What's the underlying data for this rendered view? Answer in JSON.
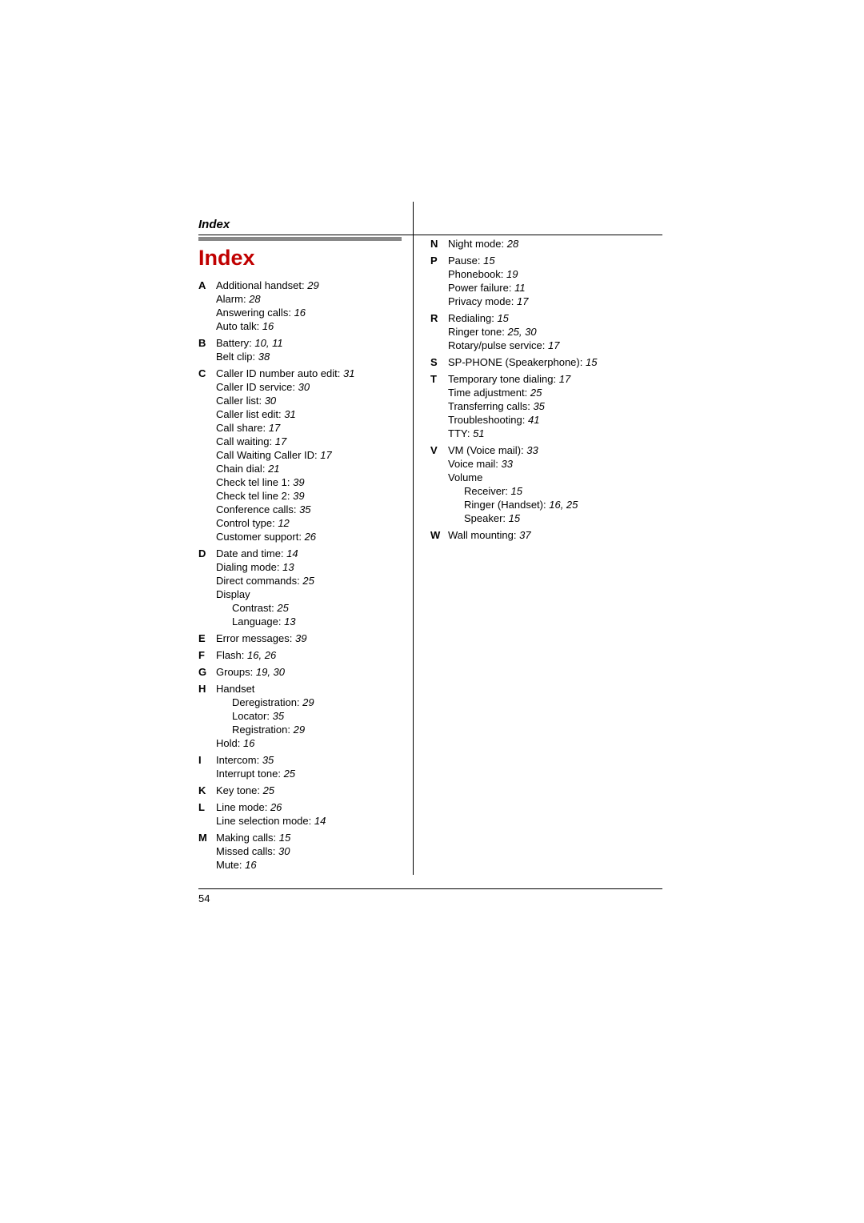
{
  "header": {
    "section_title": "Index",
    "main_title": "Index"
  },
  "left_column": [
    {
      "letter": "A",
      "entries": [
        {
          "text": "Additional handset:",
          "pages": "29"
        },
        {
          "text": "Alarm:",
          "pages": "28"
        },
        {
          "text": "Answering calls:",
          "pages": "16"
        },
        {
          "text": "Auto talk:",
          "pages": "16"
        }
      ]
    },
    {
      "letter": "B",
      "entries": [
        {
          "text": "Battery:",
          "pages": "10, 11"
        },
        {
          "text": "Belt clip:",
          "pages": "38"
        }
      ]
    },
    {
      "letter": "C",
      "entries": [
        {
          "text": "Caller ID number auto edit:",
          "pages": "31"
        },
        {
          "text": "Caller ID service:",
          "pages": "30"
        },
        {
          "text": "Caller list:",
          "pages": "30"
        },
        {
          "text": "Caller list edit:",
          "pages": "31"
        },
        {
          "text": "Call share:",
          "pages": "17"
        },
        {
          "text": "Call waiting:",
          "pages": "17"
        },
        {
          "text": "Call Waiting Caller ID:",
          "pages": "17"
        },
        {
          "text": "Chain dial:",
          "pages": "21"
        },
        {
          "text": "Check tel line 1:",
          "pages": "39"
        },
        {
          "text": "Check tel line 2:",
          "pages": "39"
        },
        {
          "text": "Conference calls:",
          "pages": "35"
        },
        {
          "text": "Control type:",
          "pages": "12"
        },
        {
          "text": "Customer support:",
          "pages": "26"
        }
      ]
    },
    {
      "letter": "D",
      "entries": [
        {
          "text": "Date and time:",
          "pages": "14"
        },
        {
          "text": "Dialing mode:",
          "pages": "13"
        },
        {
          "text": "Direct commands:",
          "pages": "25"
        },
        {
          "text": "Display",
          "pages": ""
        },
        {
          "text": "Contrast:",
          "pages": "25",
          "sub": true
        },
        {
          "text": "Language:",
          "pages": "13",
          "sub": true
        }
      ]
    },
    {
      "letter": "E",
      "entries": [
        {
          "text": "Error messages:",
          "pages": "39"
        }
      ]
    },
    {
      "letter": "F",
      "entries": [
        {
          "text": "Flash:",
          "pages": "16, 26"
        }
      ]
    },
    {
      "letter": "G",
      "entries": [
        {
          "text": "Groups:",
          "pages": "19, 30"
        }
      ]
    },
    {
      "letter": "H",
      "entries": [
        {
          "text": "Handset",
          "pages": ""
        },
        {
          "text": "Deregistration:",
          "pages": "29",
          "sub": true
        },
        {
          "text": "Locator:",
          "pages": "35",
          "sub": true
        },
        {
          "text": "Registration:",
          "pages": "29",
          "sub": true
        },
        {
          "text": "Hold:",
          "pages": "16"
        }
      ]
    },
    {
      "letter": "I",
      "entries": [
        {
          "text": "Intercom:",
          "pages": "35"
        },
        {
          "text": "Interrupt tone:",
          "pages": "25"
        }
      ]
    },
    {
      "letter": "K",
      "entries": [
        {
          "text": "Key tone:",
          "pages": "25"
        }
      ]
    },
    {
      "letter": "L",
      "entries": [
        {
          "text": "Line mode:",
          "pages": "26"
        },
        {
          "text": "Line selection mode:",
          "pages": "14"
        }
      ]
    },
    {
      "letter": "M",
      "entries": [
        {
          "text": "Making calls:",
          "pages": "15"
        },
        {
          "text": "Missed calls:",
          "pages": "30"
        },
        {
          "text": "Mute:",
          "pages": "16"
        }
      ]
    }
  ],
  "right_column": [
    {
      "letter": "N",
      "entries": [
        {
          "text": "Night mode:",
          "pages": "28"
        }
      ]
    },
    {
      "letter": "P",
      "entries": [
        {
          "text": "Pause:",
          "pages": "15"
        },
        {
          "text": "Phonebook:",
          "pages": "19"
        },
        {
          "text": "Power failure:",
          "pages": "11"
        },
        {
          "text": "Privacy mode:",
          "pages": "17"
        }
      ]
    },
    {
      "letter": "R",
      "entries": [
        {
          "text": "Redialing:",
          "pages": "15"
        },
        {
          "text": "Ringer tone:",
          "pages": "25, 30"
        },
        {
          "text": "Rotary/pulse service:",
          "pages": "17"
        }
      ]
    },
    {
      "letter": "S",
      "entries": [
        {
          "text": "SP-PHONE (Speakerphone):",
          "pages": "15"
        }
      ]
    },
    {
      "letter": "T",
      "entries": [
        {
          "text": "Temporary tone dialing:",
          "pages": "17"
        },
        {
          "text": "Time adjustment:",
          "pages": "25"
        },
        {
          "text": "Transferring calls:",
          "pages": "35"
        },
        {
          "text": "Troubleshooting:",
          "pages": "41"
        },
        {
          "text": "TTY:",
          "pages": "51"
        }
      ]
    },
    {
      "letter": "V",
      "entries": [
        {
          "text": "VM (Voice mail):",
          "pages": "33"
        },
        {
          "text": "Voice mail:",
          "pages": "33"
        },
        {
          "text": "Volume",
          "pages": ""
        },
        {
          "text": "Receiver:",
          "pages": "15",
          "sub": true
        },
        {
          "text": "Ringer (Handset):",
          "pages": "16, 25",
          "sub": true
        },
        {
          "text": "Speaker:",
          "pages": "15",
          "sub": true
        }
      ]
    },
    {
      "letter": "W",
      "entries": [
        {
          "text": "Wall mounting:",
          "pages": "37"
        }
      ]
    }
  ],
  "page_number": "54"
}
